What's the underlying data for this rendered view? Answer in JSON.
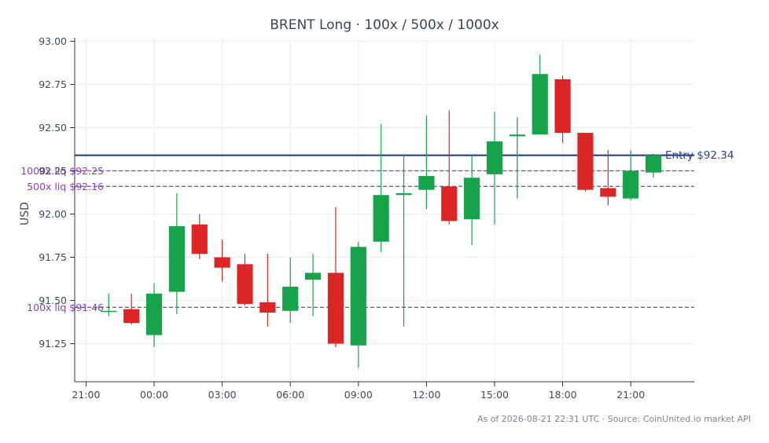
{
  "chart_data": {
    "type": "candlestick",
    "title": "BRENT Long · 100x / 500x / 1000x",
    "ylabel": "USD",
    "ylim": [
      91.03,
      93.02
    ],
    "yticks": [
      91.25,
      91.5,
      91.75,
      92.0,
      92.25,
      92.5,
      92.75,
      93.0
    ],
    "ytick_labels": [
      "91.25",
      "91.50",
      "91.75",
      "92.00",
      "92.25",
      "92.50",
      "92.75",
      "93.00"
    ],
    "xlim": [
      -3.5,
      23.8
    ],
    "xticks": [
      -3,
      0,
      3,
      6,
      9,
      12,
      15,
      18,
      21
    ],
    "xtick_labels": [
      "21:00",
      "00:00",
      "03:00",
      "06:00",
      "09:00",
      "12:00",
      "15:00",
      "18:00",
      "21:00"
    ],
    "grid": true,
    "candles": [
      {
        "t": -2,
        "open": 91.44,
        "high": 91.54,
        "low": 91.41,
        "close": 91.44
      },
      {
        "t": -1,
        "open": 91.45,
        "high": 91.54,
        "low": 91.36,
        "close": 91.37
      },
      {
        "t": 0,
        "open": 91.3,
        "high": 91.6,
        "low": 91.23,
        "close": 91.54
      },
      {
        "t": 1,
        "open": 91.55,
        "high": 92.12,
        "low": 91.42,
        "close": 91.93
      },
      {
        "t": 2,
        "open": 91.94,
        "high": 92.0,
        "low": 91.74,
        "close": 91.77
      },
      {
        "t": 3,
        "open": 91.75,
        "high": 91.85,
        "low": 91.61,
        "close": 91.69
      },
      {
        "t": 4,
        "open": 91.71,
        "high": 91.77,
        "low": 91.47,
        "close": 91.48
      },
      {
        "t": 5,
        "open": 91.49,
        "high": 91.77,
        "low": 91.35,
        "close": 91.43
      },
      {
        "t": 6,
        "open": 91.44,
        "high": 91.75,
        "low": 91.37,
        "close": 91.58
      },
      {
        "t": 7,
        "open": 91.62,
        "high": 91.77,
        "low": 91.41,
        "close": 91.66
      },
      {
        "t": 8,
        "open": 91.66,
        "high": 92.04,
        "low": 91.23,
        "close": 91.25
      },
      {
        "t": 9,
        "open": 91.24,
        "high": 91.84,
        "low": 91.11,
        "close": 91.81
      },
      {
        "t": 10,
        "open": 91.84,
        "high": 92.52,
        "low": 91.78,
        "close": 92.11
      },
      {
        "t": 11,
        "open": 92.11,
        "high": 92.34,
        "low": 91.35,
        "close": 92.12
      },
      {
        "t": 12,
        "open": 92.14,
        "high": 92.57,
        "low": 92.03,
        "close": 92.22
      },
      {
        "t": 13,
        "open": 92.16,
        "high": 92.6,
        "low": 91.94,
        "close": 91.96
      },
      {
        "t": 14,
        "open": 91.97,
        "high": 92.34,
        "low": 91.82,
        "close": 92.21
      },
      {
        "t": 15,
        "open": 92.23,
        "high": 92.59,
        "low": 91.94,
        "close": 92.42
      },
      {
        "t": 16,
        "open": 92.45,
        "high": 92.56,
        "low": 92.09,
        "close": 92.46
      },
      {
        "t": 17,
        "open": 92.46,
        "high": 92.92,
        "low": 92.46,
        "close": 92.81
      },
      {
        "t": 18,
        "open": 92.78,
        "high": 92.8,
        "low": 92.41,
        "close": 92.47
      },
      {
        "t": 19,
        "open": 92.47,
        "high": 92.47,
        "low": 92.13,
        "close": 92.14
      },
      {
        "t": 20,
        "open": 92.15,
        "high": 92.37,
        "low": 92.05,
        "close": 92.1
      },
      {
        "t": 21,
        "open": 92.09,
        "high": 92.37,
        "low": 92.08,
        "close": 92.25
      },
      {
        "t": 22,
        "open": 92.24,
        "high": 92.35,
        "low": 92.21,
        "close": 92.34
      }
    ],
    "entry": {
      "value": 92.34,
      "label": "Entry $92.34",
      "color": "#24418f"
    },
    "liquidations": [
      {
        "value": 92.25,
        "label": "1000x liq $92.25"
      },
      {
        "value": 92.16,
        "label": "500x liq $92.16"
      },
      {
        "value": 91.46,
        "label": "100x liq $91.46"
      }
    ],
    "colors": {
      "up": "#16a34a",
      "down": "#dc2626",
      "liq": "#8a4ad0"
    }
  },
  "footer": "As of 2026-08-21 22:31 UTC · Source: CoinUnited.io market API"
}
